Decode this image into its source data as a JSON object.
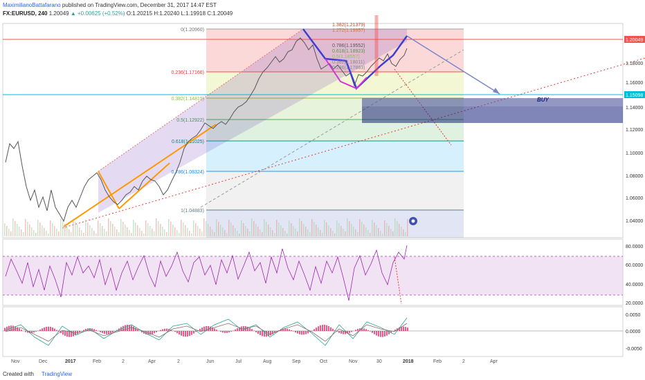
{
  "header": {
    "author": "MaximilianoBattafarano",
    "published": "published on TradingView.com, December 31, 2017 14:47 EST",
    "symbol": "FX:EURUSD, 240",
    "last": "1.20049",
    "change": "▲ +0.00625 (+0.52%)",
    "ohlc": "O:1.20215 H:1.20240 L:1.19918 C:1.20049"
  },
  "price_axis": {
    "labels": [
      "1.20049",
      "1.18000",
      "1.16000",
      "1.15098",
      "1.14000",
      "1.12000",
      "1.10000",
      "1.08000",
      "1.06000",
      "1.04000"
    ],
    "current_price_color": "#ef5350",
    "level_price_color": "#00bcd4"
  },
  "fib_levels": [
    {
      "label": "0(1.20960)"
    },
    {
      "label": "0.236(1.17166)"
    },
    {
      "label": "0.382(1.14819)"
    },
    {
      "label": "0.5(1.12922)"
    },
    {
      "label": "0.618(1.11025)"
    },
    {
      "label": "0.786(1.08324)"
    },
    {
      "label": "1(1.04883)"
    }
  ],
  "fib_ext": [
    "1.382(1.21379)",
    "1.272(1.19957)",
    "0.786(1.19552)",
    "0.618(1.18923)",
    "0.5(1.18557)",
    "0.382(1.18011)",
    "0.236(1.17863)"
  ],
  "annotations": {
    "buy": "BUY"
  },
  "rsi_axis": [
    "80.0000",
    "60.0000",
    "40.0000",
    "20.0000"
  ],
  "macd_axis": [
    "0.0050",
    "0.0000",
    "-0.0050"
  ],
  "time_axis": [
    "Nov",
    "Dec",
    "2017",
    "Feb",
    "2",
    "Apr",
    "2",
    "Jun",
    "Jul",
    "Aug",
    "Sep",
    "Oct",
    "Nov",
    "30",
    "2018",
    "Feb",
    "2",
    "Apr"
  ],
  "footer": {
    "created": "Created with",
    "brand": "TradingView"
  },
  "colors": {
    "fib_red": "#ef5350",
    "fib_green": "#8bc34a",
    "fib_blue": "#2196f3",
    "channel": "#9575cd",
    "pattern": "#3f3fd4",
    "rsi": "#9c27b0"
  }
}
